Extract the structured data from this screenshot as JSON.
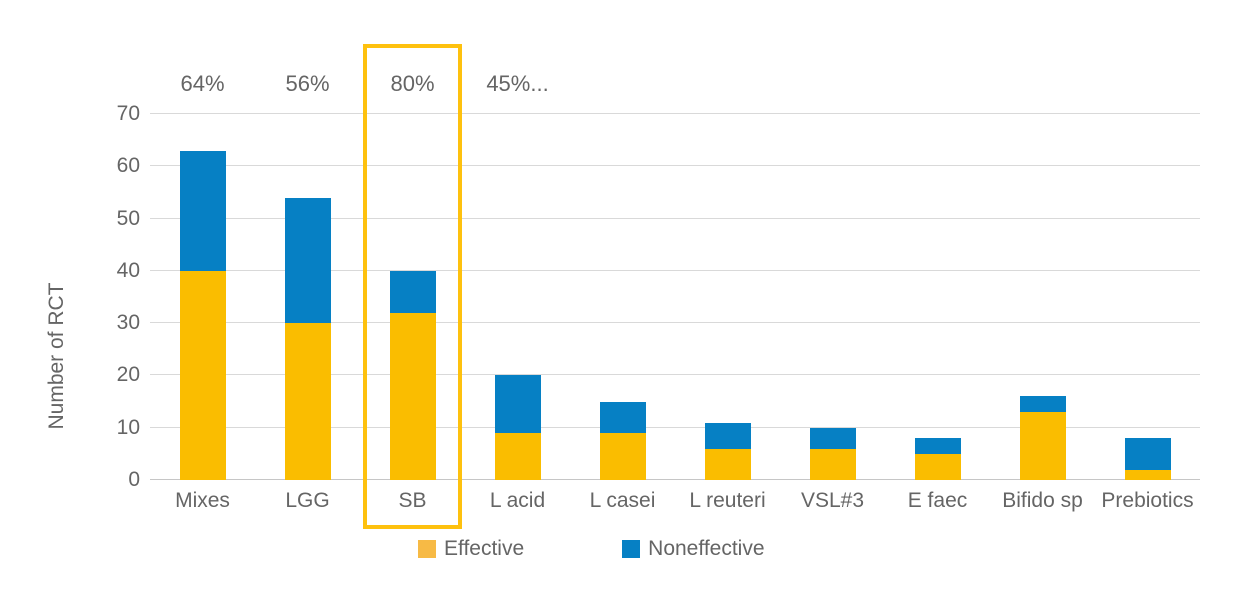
{
  "chart_data": {
    "type": "bar",
    "stacked": true,
    "title": "",
    "xlabel": "",
    "ylabel": "Number of RCT",
    "ylim": [
      0,
      70
    ],
    "yticks": [
      0,
      10,
      20,
      30,
      40,
      50,
      60,
      70
    ],
    "grid": true,
    "categories": [
      "Mixes",
      "LGG",
      "SB",
      "L acid",
      "L casei",
      "L reuteri",
      "VSL#3",
      "E faec",
      "Bifido sp",
      "Prebiotics"
    ],
    "series": [
      {
        "name": "Effective",
        "color": "#FABD00",
        "values": [
          40,
          30,
          32,
          9,
          9,
          6,
          6,
          5,
          13,
          2
        ]
      },
      {
        "name": "Noneffective",
        "color": "#0680C4",
        "values": [
          23,
          24,
          8,
          11,
          6,
          5,
          4,
          3,
          3,
          6
        ]
      }
    ],
    "totals": [
      63,
      54,
      40,
      20,
      15,
      11,
      10,
      8,
      16,
      8
    ],
    "annotations": {
      "percent_labels": [
        {
          "category": "Mixes",
          "text": "64%"
        },
        {
          "category": "LGG",
          "text": "56%"
        },
        {
          "category": "SB",
          "text": "80%"
        },
        {
          "category": "L acid",
          "text": "45%..."
        }
      ],
      "highlight": {
        "category": "SB",
        "color": "#FEC10E"
      }
    },
    "legend": {
      "position": "bottom",
      "entries": [
        {
          "label": "Effective",
          "color": "#F7BA45"
        },
        {
          "label": "Noneffective",
          "color": "#0680C4"
        }
      ]
    },
    "colors": {
      "gridline": "#D9D9D9",
      "axis_line": "#C6C6C6",
      "text": "#656565",
      "background": "#FFFFFF"
    }
  }
}
